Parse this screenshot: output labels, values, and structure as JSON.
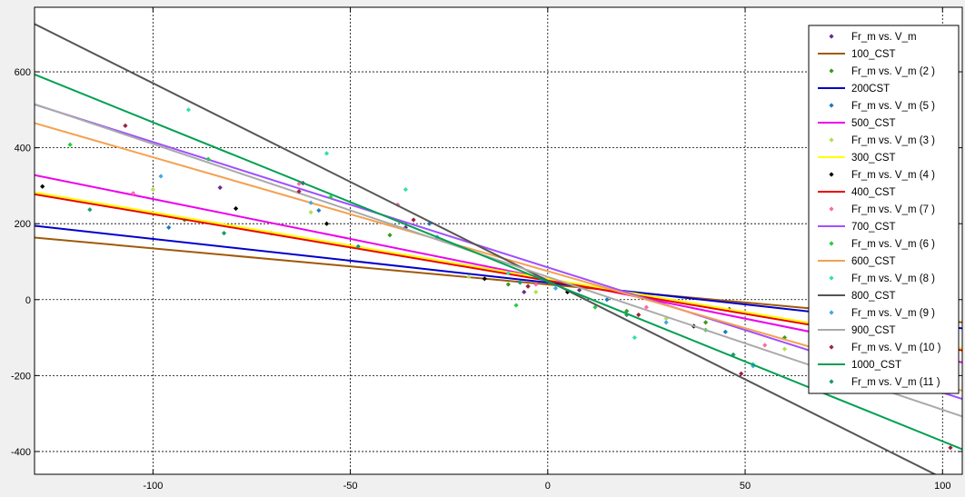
{
  "chart_data": {
    "type": "scatter",
    "title": "",
    "xlabel": "",
    "ylabel": "",
    "xlim": [
      -130,
      105
    ],
    "ylim": [
      -460,
      770
    ],
    "x_ticks": [
      -100,
      -50,
      0,
      50,
      100
    ],
    "y_ticks": [
      -400,
      -200,
      0,
      200,
      400,
      600
    ],
    "x_tick_labels": [
      "-100",
      "-50",
      "0",
      "50",
      "100"
    ],
    "y_tick_labels": [
      "-400",
      "-200",
      "0",
      "200",
      "400",
      "600"
    ],
    "grid": true,
    "legend_position": "top-right",
    "series": [
      {
        "name": "Fr_m vs. V_m",
        "kind": "points",
        "color": "#6a2a8a",
        "points": [
          [
            -83,
            295
          ],
          [
            -62,
            307
          ],
          [
            -36,
            190
          ],
          [
            -6,
            20
          ],
          [
            8,
            25
          ],
          [
            46,
            -25
          ],
          [
            70,
            -90
          ]
        ]
      },
      {
        "name": "100_CST",
        "kind": "line",
        "color": "#a05a0a",
        "slope": -0.95,
        "intercept": 40
      },
      {
        "name": "Fr_m vs. V_m (2 )",
        "kind": "points",
        "color": "#3a9a20",
        "points": [
          [
            -92,
            210
          ],
          [
            -70,
            175
          ],
          [
            -40,
            170
          ],
          [
            -10,
            40
          ],
          [
            20,
            -30
          ],
          [
            40,
            -60
          ],
          [
            60,
            -100
          ]
        ]
      },
      {
        "name": "200CST",
        "kind": "line",
        "color": "#0000cc",
        "slope": -1.15,
        "intercept": 45
      },
      {
        "name": "Fr_m vs. V_m (5 )",
        "kind": "points",
        "color": "#1a7ac0",
        "points": [
          [
            -96,
            190
          ],
          [
            -58,
            235
          ],
          [
            -30,
            200
          ],
          [
            -5,
            35
          ],
          [
            15,
            0
          ],
          [
            45,
            -85
          ]
        ]
      },
      {
        "name": "500_CST",
        "kind": "line",
        "color": "#ee00ee",
        "slope": -2.1,
        "intercept": 55
      },
      {
        "name": "Fr_m vs. V_m (3 )",
        "kind": "points",
        "color": "#b0e050",
        "points": [
          [
            -100,
            290
          ],
          [
            -60,
            230
          ],
          [
            -20,
            60
          ],
          [
            -3,
            20
          ],
          [
            30,
            -50
          ],
          [
            60,
            -130
          ]
        ]
      },
      {
        "name": "300_CST",
        "kind": "line",
        "color": "#ffff00",
        "slope": -1.75,
        "intercept": 55
      },
      {
        "name": "Fr_m vs. V_m (4 )",
        "kind": "points",
        "color": "#000000",
        "points": [
          [
            -128,
            298
          ],
          [
            -79,
            240
          ],
          [
            -56,
            200
          ],
          [
            -16,
            55
          ],
          [
            5,
            20
          ],
          [
            37,
            -70
          ]
        ]
      },
      {
        "name": "400_CST",
        "kind": "line",
        "color": "#ee0000",
        "slope": -1.75,
        "intercept": 50
      },
      {
        "name": "Fr_m vs. V_m (7 )",
        "kind": "points",
        "color": "#ff6aa8",
        "points": [
          [
            -105,
            280
          ],
          [
            -63,
            305
          ],
          [
            -38,
            250
          ],
          [
            -3,
            40
          ],
          [
            25,
            -20
          ],
          [
            55,
            -120
          ]
        ]
      },
      {
        "name": "700_CST",
        "kind": "line",
        "color": "#a050ff",
        "slope": -3.3,
        "intercept": 85
      },
      {
        "name": "Fr_m vs. V_m (6 )",
        "kind": "points",
        "color": "#20d040",
        "points": [
          [
            -121,
            408
          ],
          [
            -86,
            370
          ],
          [
            -55,
            270
          ],
          [
            -8,
            -15
          ],
          [
            12,
            -20
          ],
          [
            40,
            -80
          ]
        ]
      },
      {
        "name": "600_CST",
        "kind": "line",
        "color": "#f5a050",
        "slope": -3.0,
        "intercept": 75
      },
      {
        "name": "Fr_m vs. V_m (8 )",
        "kind": "points",
        "color": "#30e0b0",
        "points": [
          [
            -91,
            500
          ],
          [
            -56,
            385
          ],
          [
            -36,
            290
          ],
          [
            -10,
            70
          ],
          [
            22,
            -100
          ],
          [
            52,
            -170
          ]
        ]
      },
      {
        "name": "800_CST",
        "kind": "line",
        "color": "#555555",
        "slope": -5.2,
        "intercept": 50
      },
      {
        "name": "Fr_m vs. V_m (9 )",
        "kind": "points",
        "color": "#40a8e8",
        "points": [
          [
            -98,
            325
          ],
          [
            -60,
            255
          ],
          [
            -28,
            165
          ],
          [
            2,
            30
          ],
          [
            30,
            -60
          ],
          [
            52,
            -175
          ]
        ]
      },
      {
        "name": "900_CST",
        "kind": "line",
        "color": "#aaaaaa",
        "slope": -3.5,
        "intercept": 60
      },
      {
        "name": "Fr_m vs. V_m (10 )",
        "kind": "points",
        "color": "#a0203a",
        "points": [
          [
            -107,
            458
          ],
          [
            -63,
            285
          ],
          [
            -34,
            210
          ],
          [
            -5,
            35
          ],
          [
            23,
            -40
          ],
          [
            49,
            -195
          ],
          [
            102,
            -390
          ]
        ]
      },
      {
        "name": "1000_CST",
        "kind": "line",
        "color": "#00a050",
        "slope": -4.2,
        "intercept": 47
      },
      {
        "name": "Fr_m vs. V_m (11 )",
        "kind": "points",
        "color": "#1a9a6a",
        "points": [
          [
            -116,
            237
          ],
          [
            -82,
            175
          ],
          [
            -48,
            140
          ],
          [
            -7,
            45
          ],
          [
            20,
            -40
          ],
          [
            47,
            -145
          ]
        ]
      }
    ]
  }
}
